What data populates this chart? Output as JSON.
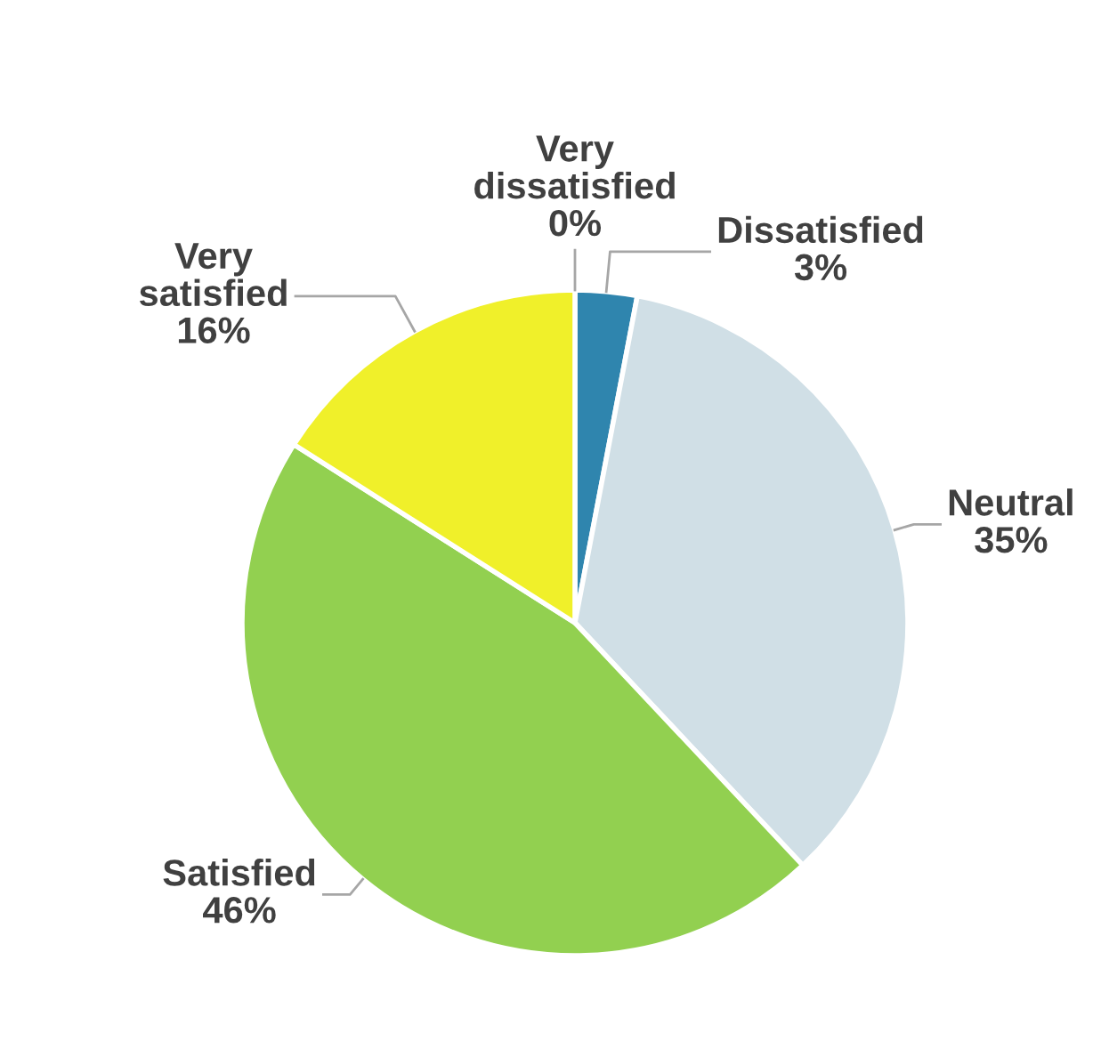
{
  "chart_data": {
    "type": "pie",
    "categories": [
      "Very dissatisfied",
      "Dissatisfied",
      "Neutral",
      "Satisfied",
      "Very satisfied"
    ],
    "values": [
      0,
      3,
      35,
      46,
      16
    ],
    "value_labels": [
      "0%",
      "3%",
      "35%",
      "46%",
      "16%"
    ],
    "colors": [
      "#1f5f85",
      "#2f85ae",
      "#d0dfe6",
      "#92d050",
      "#f0f02a"
    ],
    "legend": false
  }
}
